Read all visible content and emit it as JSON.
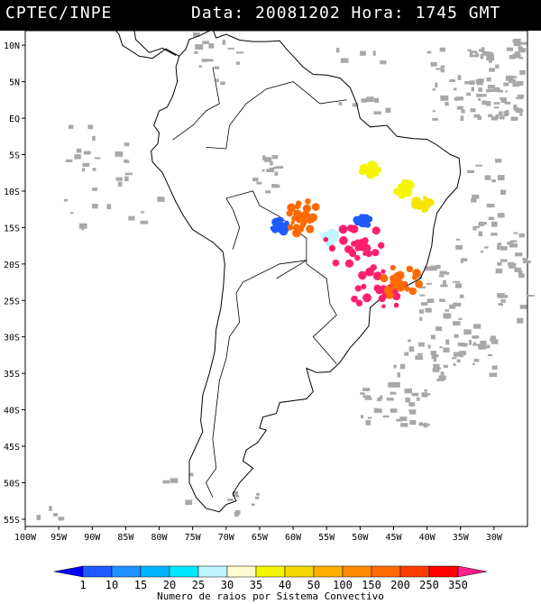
{
  "header": {
    "source": "CPTEC/INPE",
    "datetime": "Data: 20081202 Hora: 1745 GMT"
  },
  "map": {
    "lon_range": [
      -100,
      -25
    ],
    "lat_range": [
      -56,
      12
    ],
    "lon_ticks": [
      {
        "value": -100,
        "label": "100W"
      },
      {
        "value": -95,
        "label": "95W"
      },
      {
        "value": -90,
        "label": "90W"
      },
      {
        "value": -85,
        "label": "85W"
      },
      {
        "value": -80,
        "label": "80W"
      },
      {
        "value": -75,
        "label": "75W"
      },
      {
        "value": -70,
        "label": "70W"
      },
      {
        "value": -65,
        "label": "65W"
      },
      {
        "value": -60,
        "label": "60W"
      },
      {
        "value": -55,
        "label": "55W"
      },
      {
        "value": -50,
        "label": "50W"
      },
      {
        "value": -45,
        "label": "45W"
      },
      {
        "value": -40,
        "label": "40W"
      },
      {
        "value": -35,
        "label": "35W"
      },
      {
        "value": -30,
        "label": "30W"
      }
    ],
    "lat_ticks": [
      {
        "value": 10,
        "label": "10N"
      },
      {
        "value": 5,
        "label": "5N"
      },
      {
        "value": 0,
        "label": "EQ"
      },
      {
        "value": -5,
        "label": "5S"
      },
      {
        "value": -10,
        "label": "10S"
      },
      {
        "value": -15,
        "label": "15S"
      },
      {
        "value": -20,
        "label": "20S"
      },
      {
        "value": -25,
        "label": "25S"
      },
      {
        "value": -30,
        "label": "30S"
      },
      {
        "value": -35,
        "label": "35S"
      },
      {
        "value": -40,
        "label": "40S"
      },
      {
        "value": -45,
        "label": "45S"
      },
      {
        "value": -50,
        "label": "50S"
      },
      {
        "value": -55,
        "label": "55S"
      }
    ],
    "cloud_color": "#a8a8a8",
    "coast_color": "#000000",
    "systems": [
      {
        "lon": -62.0,
        "lat": -14.8,
        "count": 15,
        "color": "#1f5cff"
      },
      {
        "lon": -58.5,
        "lat": -13.6,
        "count": 200,
        "color": "#ff6a00"
      },
      {
        "lon": -54.5,
        "lat": -16.6,
        "count": 30,
        "color": "#bff5ff"
      },
      {
        "lon": -51.0,
        "lat": -17.8,
        "count": 350,
        "color": "#ff1f6e"
      },
      {
        "lon": -46.5,
        "lat": -23.5,
        "count": 350,
        "color": "#ff1f6e"
      },
      {
        "lon": -44.0,
        "lat": -22.6,
        "count": 200,
        "color": "#ff6a00"
      },
      {
        "lon": -48.5,
        "lat": -7.0,
        "count": 35,
        "color": "#f5f500"
      },
      {
        "lon": -43.5,
        "lat": -9.8,
        "count": 35,
        "color": "#f5f500"
      },
      {
        "lon": -40.5,
        "lat": -11.8,
        "count": 40,
        "color": "#f5e500"
      },
      {
        "lon": -49.5,
        "lat": -14.3,
        "count": 10,
        "color": "#1f5cff"
      }
    ]
  },
  "legend": {
    "caption": "Numero de raios por Sistema Convectivo",
    "labels": [
      "1",
      "10",
      "15",
      "20",
      "25",
      "30",
      "35",
      "40",
      "50",
      "100",
      "150",
      "200",
      "250",
      "350"
    ],
    "colors": [
      "#0000ff",
      "#1f5cff",
      "#1e90ff",
      "#00b4ff",
      "#00e8ff",
      "#bff5ff",
      "#fffdd0",
      "#f5f500",
      "#f5d800",
      "#ffb000",
      "#ff8c00",
      "#ff6a00",
      "#ff3c00",
      "#ff0000",
      "#ff1f8c"
    ]
  }
}
